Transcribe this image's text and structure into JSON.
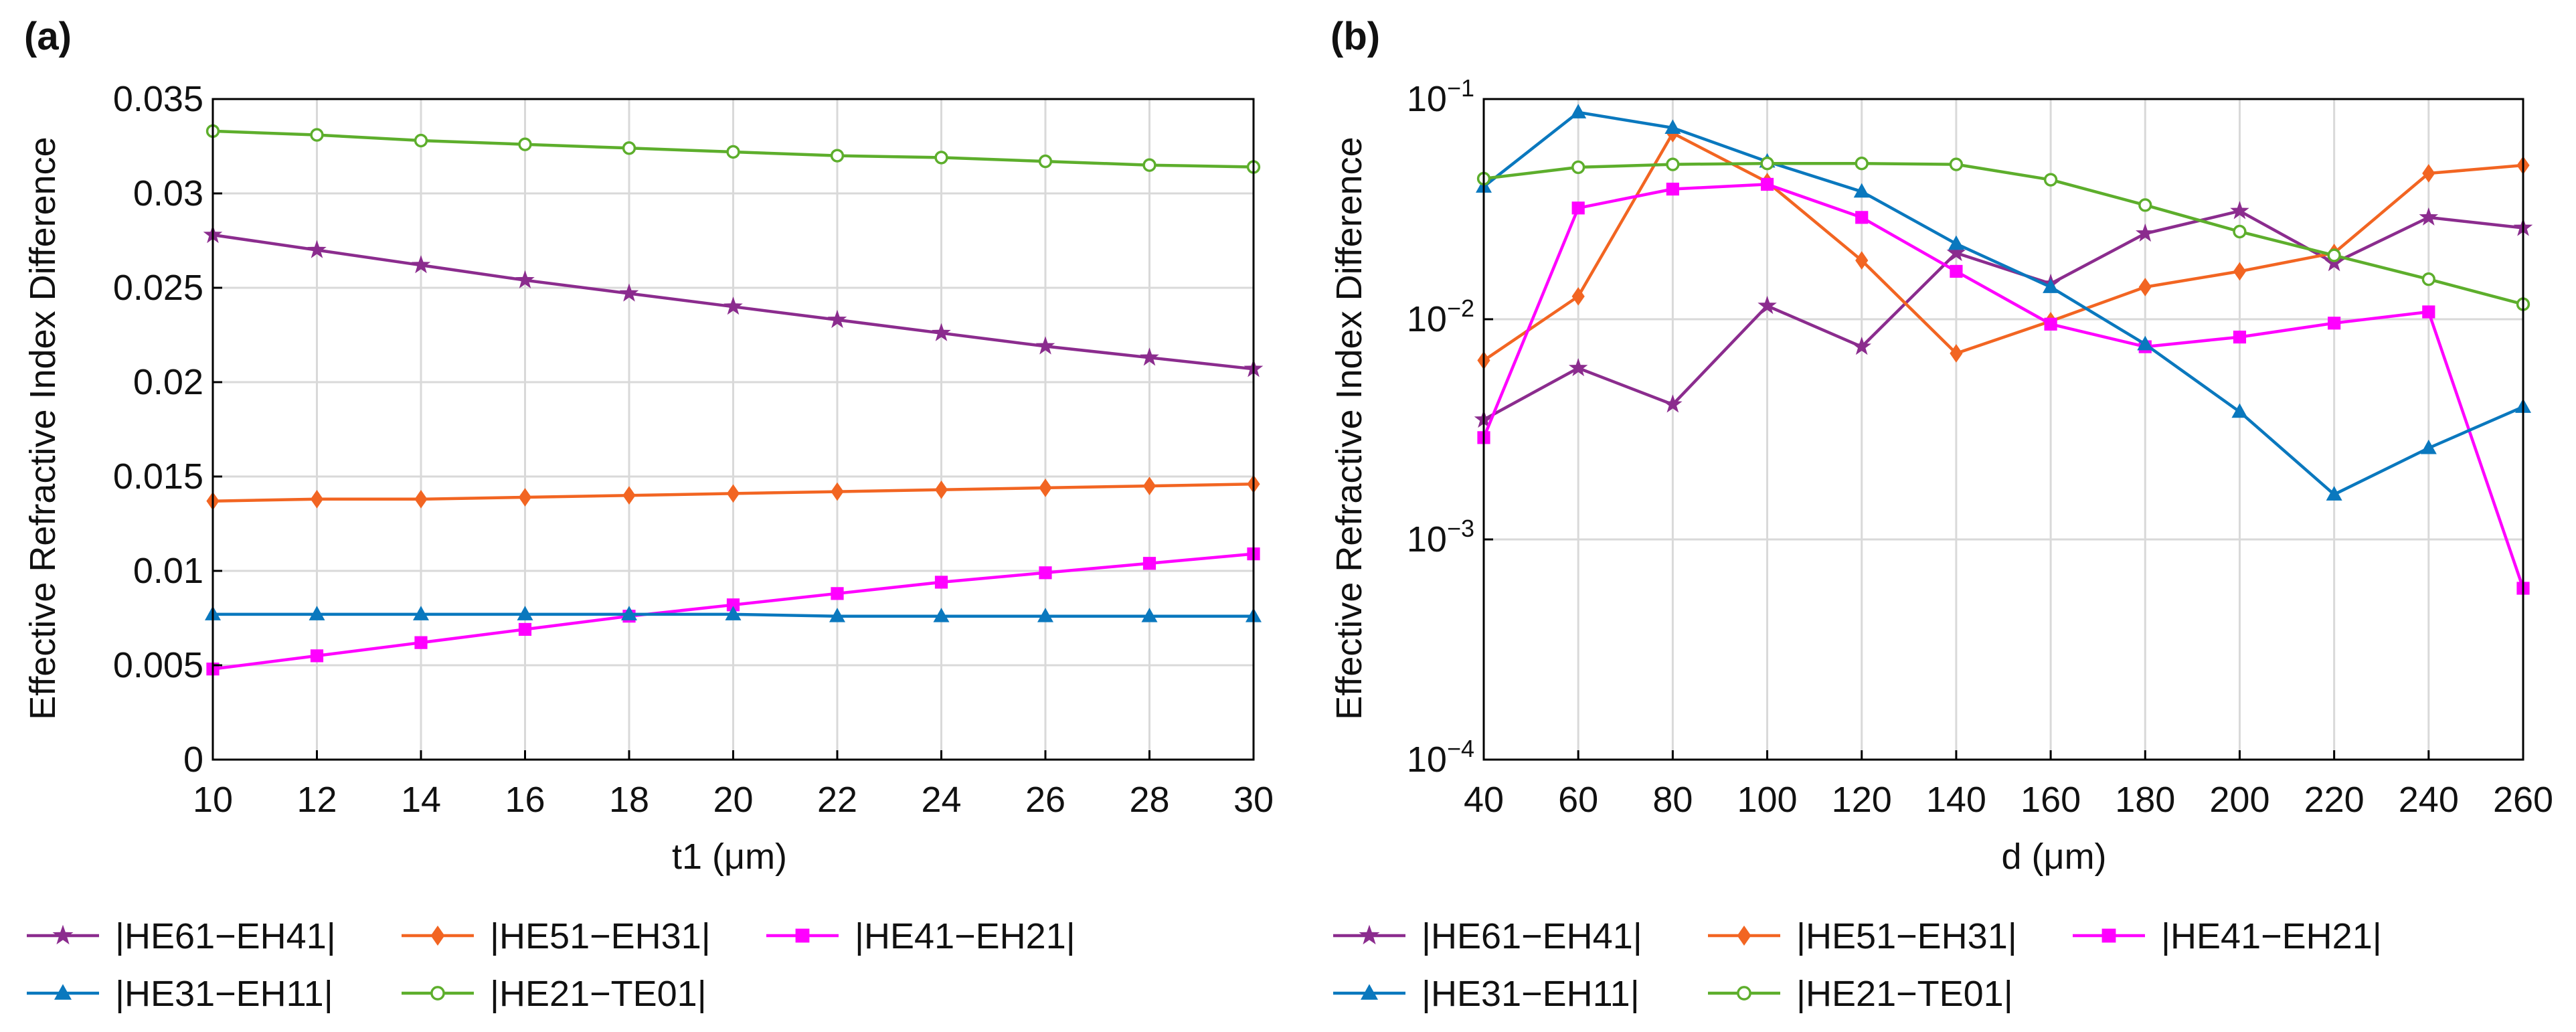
{
  "panels": [
    {
      "label": "(a)"
    },
    {
      "label": "(b)"
    }
  ],
  "legend_items": [
    {
      "name": "|HE61−EH41|",
      "color": "#8B2C8E",
      "marker": "star"
    },
    {
      "name": "|HE51−EH31|",
      "color": "#F26522",
      "marker": "diamond"
    },
    {
      "name": "|HE41−EH21|",
      "color": "#FF00FF",
      "marker": "square"
    },
    {
      "name": "|HE31−EH11|",
      "color": "#0A78BE",
      "marker": "triangle"
    },
    {
      "name": "|HE21−TE01|",
      "color": "#5DAE2C",
      "marker": "circle"
    }
  ],
  "chart_data": [
    {
      "type": "line",
      "panel": "(a)",
      "xlabel": "t1 (μm)",
      "ylabel": "Effective Refractive Index Difference",
      "x": [
        10,
        12,
        14,
        16,
        18,
        20,
        22,
        24,
        26,
        28,
        30
      ],
      "xlim": [
        10,
        30
      ],
      "ylim": [
        0,
        0.035
      ],
      "yscale": "linear",
      "xticks": [
        10,
        12,
        14,
        16,
        18,
        20,
        22,
        24,
        26,
        28,
        30
      ],
      "yticks": [
        {
          "value": 0,
          "label": "0"
        },
        {
          "value": 0.005,
          "label": "0.005"
        },
        {
          "value": 0.01,
          "label": "0.01"
        },
        {
          "value": 0.015,
          "label": "0.015"
        },
        {
          "value": 0.02,
          "label": "0.02"
        },
        {
          "value": 0.025,
          "label": "0.025"
        },
        {
          "value": 0.03,
          "label": "0.03"
        },
        {
          "value": 0.035,
          "label": "0.035"
        }
      ],
      "grid": true,
      "legend": "bottom",
      "series": [
        {
          "name": "|HE61−EH41|",
          "values": [
            0.0278,
            0.027,
            0.0262,
            0.0254,
            0.0247,
            0.024,
            0.0233,
            0.0226,
            0.0219,
            0.0213,
            0.0207
          ]
        },
        {
          "name": "|HE51−EH31|",
          "values": [
            0.0137,
            0.0138,
            0.0138,
            0.0139,
            0.014,
            0.0141,
            0.0142,
            0.0143,
            0.0144,
            0.0145,
            0.0146
          ]
        },
        {
          "name": "|HE41−EH21|",
          "values": [
            0.0048,
            0.0055,
            0.0062,
            0.0069,
            0.0076,
            0.0082,
            0.0088,
            0.0094,
            0.0099,
            0.0104,
            0.0109
          ]
        },
        {
          "name": "|HE31−EH11|",
          "values": [
            0.0077,
            0.0077,
            0.0077,
            0.0077,
            0.0077,
            0.0077,
            0.0076,
            0.0076,
            0.0076,
            0.0076,
            0.0076
          ]
        },
        {
          "name": "|HE21−TE01|",
          "values": [
            0.0333,
            0.0331,
            0.0328,
            0.0326,
            0.0324,
            0.0322,
            0.032,
            0.0319,
            0.0317,
            0.0315,
            0.0314
          ]
        }
      ]
    },
    {
      "type": "line",
      "panel": "(b)",
      "xlabel": "d (μm)",
      "ylabel": "Effective Refractive Index Difference",
      "x": [
        40,
        60,
        80,
        100,
        120,
        140,
        160,
        180,
        200,
        220,
        240,
        260
      ],
      "xlim": [
        40,
        260
      ],
      "ylim": [
        0.0001,
        0.1
      ],
      "yscale": "log",
      "xticks": [
        40,
        60,
        80,
        100,
        120,
        140,
        160,
        180,
        200,
        220,
        240,
        260
      ],
      "yticks": [
        {
          "value": 0.1,
          "base": "10",
          "exp": "−1"
        },
        {
          "value": 0.01,
          "base": "10",
          "exp": "−2"
        },
        {
          "value": 0.001,
          "base": "10",
          "exp": "−3"
        },
        {
          "value": 0.0001,
          "base": "10",
          "exp": "−4"
        }
      ],
      "grid": true,
      "legend": "bottom",
      "series": [
        {
          "name": "|HE61−EH41|",
          "values": [
            0.0035,
            0.006,
            0.0041,
            0.0115,
            0.0075,
            0.02,
            0.0145,
            0.0245,
            0.031,
            0.018,
            0.029,
            0.026
          ]
        },
        {
          "name": "|HE51−EH31|",
          "values": [
            0.0065,
            0.0127,
            0.07,
            0.042,
            0.0185,
            0.007,
            0.0098,
            0.014,
            0.0165,
            0.02,
            0.046,
            0.05
          ]
        },
        {
          "name": "|HE41−EH21|",
          "values": [
            0.0029,
            0.032,
            0.039,
            0.041,
            0.029,
            0.0165,
            0.0095,
            0.0075,
            0.0083,
            0.0096,
            0.0108,
            0.0006
          ]
        },
        {
          "name": "|HE31−EH11|",
          "values": [
            0.04,
            0.087,
            0.074,
            0.052,
            0.038,
            0.022,
            0.014,
            0.0077,
            0.0038,
            0.0016,
            0.0026,
            0.004
          ]
        },
        {
          "name": "|HE21−TE01|",
          "values": [
            0.0435,
            0.049,
            0.0505,
            0.051,
            0.051,
            0.0505,
            0.043,
            0.033,
            0.025,
            0.0195,
            0.0152,
            0.0117
          ]
        }
      ]
    }
  ]
}
